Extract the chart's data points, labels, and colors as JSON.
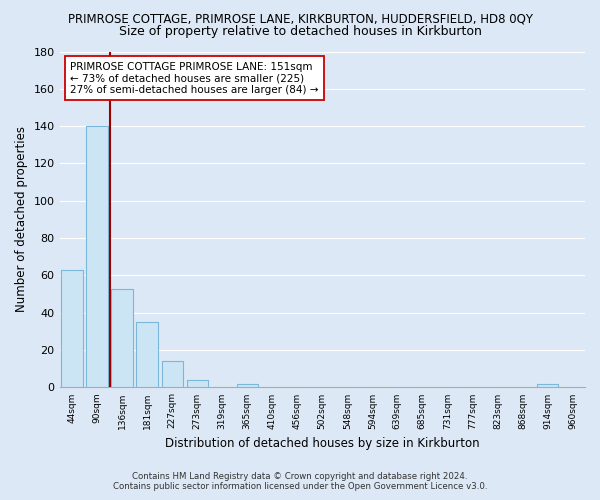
{
  "title": "PRIMROSE COTTAGE, PRIMROSE LANE, KIRKBURTON, HUDDERSFIELD, HD8 0QY",
  "subtitle": "Size of property relative to detached houses in Kirkburton",
  "xlabel": "Distribution of detached houses by size in Kirkburton",
  "ylabel": "Number of detached properties",
  "bar_values": [
    63,
    140,
    53,
    35,
    14,
    4,
    0,
    2,
    0,
    0,
    0,
    0,
    0,
    0,
    0,
    0,
    0,
    0,
    0,
    2,
    0
  ],
  "bar_labels": [
    "44sqm",
    "90sqm",
    "136sqm",
    "181sqm",
    "227sqm",
    "273sqm",
    "319sqm",
    "365sqm",
    "410sqm",
    "456sqm",
    "502sqm",
    "548sqm",
    "594sqm",
    "639sqm",
    "685sqm",
    "731sqm",
    "777sqm",
    "823sqm",
    "868sqm",
    "914sqm",
    "960sqm"
  ],
  "bar_color": "#cce5f5",
  "bar_edge_color": "#7ab8d9",
  "property_line_color": "#990000",
  "annotation_text": "PRIMROSE COTTAGE PRIMROSE LANE: 151sqm\n← 73% of detached houses are smaller (225)\n27% of semi-detached houses are larger (84) →",
  "ylim": [
    0,
    180
  ],
  "yticks": [
    0,
    20,
    40,
    60,
    80,
    100,
    120,
    140,
    160,
    180
  ],
  "footer_line1": "Contains HM Land Registry data © Crown copyright and database right 2024.",
  "footer_line2": "Contains public sector information licensed under the Open Government Licence v3.0.",
  "bg_color": "#dce8f5",
  "plot_bg_color": "#dce8f5",
  "grid_color": "#ffffff",
  "title_fontsize": 8.5,
  "subtitle_fontsize": 9.0
}
